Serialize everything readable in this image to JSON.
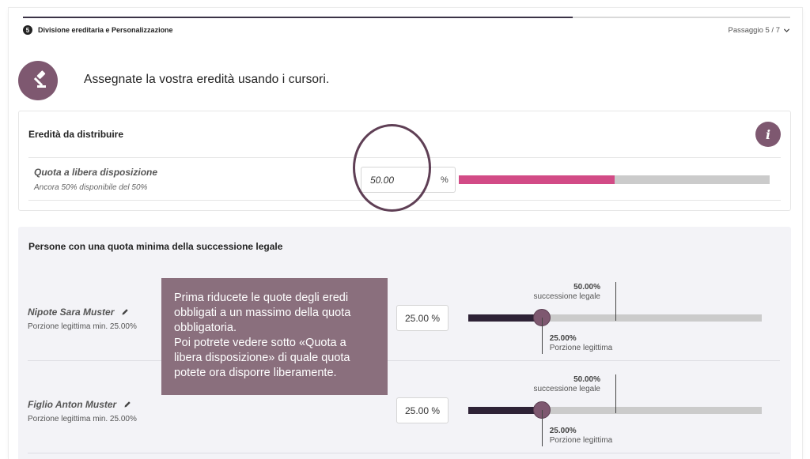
{
  "progress": {
    "fraction": 0.716
  },
  "step": {
    "number": "5",
    "title": "Divisione ereditaria e Personalizzazione",
    "counter": "Passaggio 5 / 7"
  },
  "intro": {
    "text": "Assegnate la vostra eredità usando i cursori."
  },
  "inheritance": {
    "title": "Eredità da distribuire",
    "info_icon_label": "i",
    "free_quota": {
      "label": "Quota a libera disposizione",
      "sub": "Ancora 50% disponibile del 50%",
      "value": "50.00",
      "unit": "%",
      "bar_fraction": 0.5,
      "bar_color": "#d24b86"
    }
  },
  "heirs_section": {
    "title": "Persone con una quota minima della successione legale",
    "heirs": [
      {
        "name": "Nipote Sara Muster",
        "min_text": "Porzione legittima min. 25.00%",
        "value": "25.00 %",
        "slider_fraction": 0.25,
        "legal_fraction": 0.5,
        "legal_pct": "50.00%",
        "legal_label": "successione legale",
        "reserved_pct": "25.00%",
        "reserved_label": "Porzione legittima"
      },
      {
        "name": "Figlio Anton Muster",
        "min_text": "Porzione legittima min. 25.00%",
        "value": "25.00 %",
        "slider_fraction": 0.25,
        "legal_fraction": 0.5,
        "legal_pct": "50.00%",
        "legal_label": "successione legale",
        "reserved_pct": "25.00%",
        "reserved_label": "Porzione legittima"
      }
    ]
  },
  "tooltip": {
    "text": "Prima riducete le quote degli eredi obbligati a un massimo della quota obbligatoria.\nPoi potrete vedere sotto «Quota a libera disposizione» di quale quota potete ora disporre liberamente."
  },
  "icons": {
    "step": "step-number-icon",
    "chevron": "chevron-down-icon",
    "gavel": "gavel-icon",
    "info": "info-icon",
    "edit": "pencil-icon"
  },
  "colors": {
    "accent": "#7e5870",
    "slider_fill": "#2e2236",
    "tooltip_bg": "#8a6f7d"
  }
}
